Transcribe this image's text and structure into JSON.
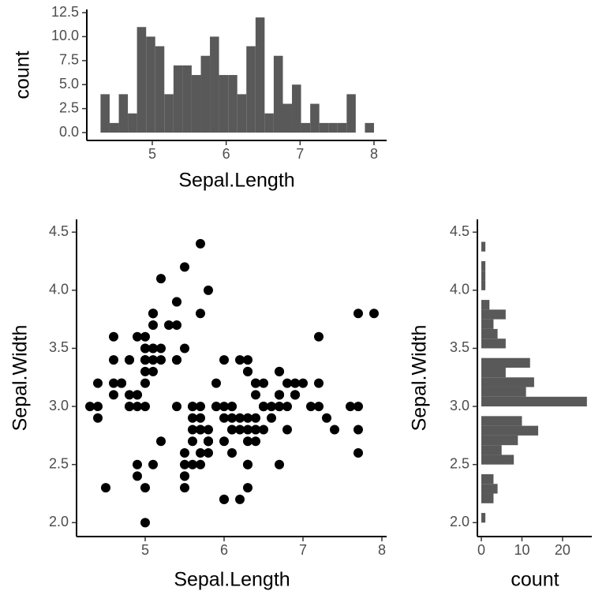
{
  "chart_data": [
    {
      "type": "histogram",
      "orientation": "vertical",
      "xlabel": "Sepal.Length",
      "ylabel": "count",
      "color": "#595959",
      "grid": false,
      "bins": [
        4.3,
        4.423,
        4.547,
        4.67,
        4.793,
        4.917,
        5.04,
        5.163,
        5.287,
        5.41,
        5.533,
        5.657,
        5.78,
        5.903,
        6.027,
        6.15,
        6.273,
        6.397,
        6.52,
        6.643,
        6.767,
        6.89,
        7.013,
        7.137,
        7.26,
        7.383,
        7.507,
        7.63,
        7.753,
        7.877,
        8.0
      ],
      "values": [
        4,
        1,
        4,
        2,
        11,
        10,
        9,
        4,
        7,
        7,
        6,
        8,
        10,
        6,
        6,
        4,
        9,
        12,
        2,
        8,
        3,
        5,
        1,
        3,
        1,
        1,
        1,
        4,
        0,
        1
      ],
      "xlim": [
        4.114,
        8.171
      ],
      "xticks": [
        5,
        6,
        7,
        8
      ],
      "ylim": [
        -0.82,
        12.83
      ],
      "yticks": [
        {
          "value": 0,
          "label": "0.0"
        },
        2.5,
        {
          "value": 5,
          "label": "5.0"
        },
        7.5,
        {
          "value": 10,
          "label": "10.0"
        },
        12.5
      ]
    },
    {
      "type": "scatter",
      "xlabel": "Sepal.Length",
      "ylabel": "Sepal.Width",
      "color": "#000000",
      "grid": false,
      "x": [
        5.1,
        4.9,
        4.7,
        4.6,
        5.0,
        5.4,
        4.6,
        5.0,
        4.4,
        4.9,
        5.4,
        4.8,
        4.8,
        4.3,
        5.8,
        5.7,
        5.4,
        5.1,
        5.7,
        5.1,
        5.4,
        5.1,
        4.6,
        5.1,
        4.8,
        5.0,
        5.0,
        5.2,
        5.2,
        4.7,
        4.8,
        5.4,
        5.2,
        5.5,
        4.9,
        5.0,
        5.5,
        4.9,
        4.4,
        5.1,
        5.0,
        4.5,
        4.4,
        5.0,
        5.1,
        4.8,
        5.1,
        4.6,
        5.3,
        5.0,
        7.0,
        6.4,
        6.9,
        5.5,
        6.5,
        5.7,
        6.3,
        4.9,
        6.6,
        5.2,
        5.0,
        5.9,
        6.0,
        6.1,
        5.6,
        6.7,
        5.6,
        5.8,
        6.2,
        5.6,
        5.9,
        6.1,
        6.3,
        6.1,
        6.4,
        6.6,
        6.8,
        6.7,
        6.0,
        5.7,
        5.5,
        5.5,
        5.8,
        6.0,
        5.4,
        6.0,
        6.7,
        6.3,
        5.6,
        5.5,
        5.5,
        6.1,
        5.8,
        5.0,
        5.6,
        5.7,
        5.7,
        6.2,
        5.1,
        5.7,
        6.3,
        5.8,
        7.1,
        6.3,
        6.5,
        7.6,
        4.9,
        7.3,
        6.7,
        7.2,
        6.5,
        6.4,
        6.8,
        5.7,
        5.8,
        6.4,
        6.5,
        7.7,
        7.7,
        6.0,
        6.9,
        5.6,
        7.7,
        6.3,
        6.7,
        7.2,
        6.2,
        6.1,
        6.4,
        7.2,
        7.4,
        7.9,
        6.4,
        6.3,
        6.1,
        7.7,
        6.3,
        6.4,
        6.0,
        6.9,
        6.7,
        6.9,
        5.8,
        6.8,
        6.7,
        6.7,
        6.3,
        6.5,
        6.2,
        5.9
      ],
      "values": [
        3.5,
        3.0,
        3.2,
        3.1,
        3.6,
        3.9,
        3.4,
        3.4,
        2.9,
        3.1,
        3.7,
        3.4,
        3.0,
        3.0,
        4.0,
        4.4,
        3.9,
        3.5,
        3.8,
        3.8,
        3.4,
        3.7,
        3.6,
        3.3,
        3.4,
        3.0,
        3.4,
        3.5,
        3.4,
        3.2,
        3.1,
        3.4,
        4.1,
        4.2,
        3.1,
        3.2,
        3.5,
        3.6,
        3.0,
        3.4,
        3.5,
        2.3,
        3.2,
        3.5,
        3.8,
        3.0,
        3.8,
        3.2,
        3.7,
        3.3,
        3.2,
        3.2,
        3.1,
        2.3,
        2.8,
        2.8,
        3.3,
        2.4,
        2.9,
        2.7,
        2.0,
        3.0,
        2.2,
        2.9,
        2.9,
        3.1,
        3.0,
        2.7,
        2.2,
        2.5,
        3.2,
        2.8,
        2.5,
        2.8,
        2.9,
        3.0,
        2.8,
        3.0,
        2.9,
        2.6,
        2.4,
        2.4,
        2.7,
        2.7,
        3.0,
        3.4,
        3.1,
        2.3,
        3.0,
        2.5,
        2.6,
        3.0,
        2.6,
        2.3,
        2.7,
        3.0,
        2.9,
        2.9,
        2.5,
        2.8,
        3.3,
        2.7,
        3.0,
        2.9,
        3.0,
        3.0,
        2.5,
        2.9,
        2.5,
        3.6,
        3.2,
        2.7,
        3.0,
        2.5,
        2.8,
        3.2,
        3.0,
        3.8,
        2.6,
        2.2,
        3.2,
        2.8,
        2.8,
        2.7,
        3.3,
        3.2,
        2.8,
        3.0,
        2.8,
        3.0,
        2.8,
        3.8,
        2.8,
        2.8,
        2.6,
        3.0,
        3.4,
        3.1,
        3.0,
        3.1,
        3.1,
        3.1,
        2.7,
        3.2,
        3.3,
        3.0,
        2.5,
        3.0,
        3.4,
        3.0
      ],
      "xlim": [
        4.13,
        8.06
      ],
      "xticks": [
        5,
        6,
        7,
        8
      ],
      "ylim": [
        1.88,
        4.61
      ],
      "yticks": [
        {
          "value": 2,
          "label": "2.0"
        },
        2.5,
        {
          "value": 3,
          "label": "3.0"
        },
        3.5,
        {
          "value": 4,
          "label": "4.0"
        },
        4.5
      ]
    },
    {
      "type": "histogram",
      "orientation": "horizontal",
      "xlabel": "count",
      "ylabel": "Sepal.Width",
      "color": "#595959",
      "grid": false,
      "bins": [
        2.0,
        2.0833,
        2.1667,
        2.25,
        2.3333,
        2.4167,
        2.5,
        2.5833,
        2.6667,
        2.75,
        2.8333,
        2.9167,
        3.0,
        3.0833,
        3.1667,
        3.25,
        3.3333,
        3.4167,
        3.5,
        3.5833,
        3.6667,
        3.75,
        3.8333,
        3.9167,
        4.0,
        4.0833,
        4.1667,
        4.25,
        4.3333,
        4.4167,
        4.5
      ],
      "values": [
        1,
        0,
        3,
        4,
        3,
        0,
        8,
        5,
        9,
        14,
        10,
        0,
        26,
        11,
        13,
        6,
        12,
        0,
        6,
        4,
        3,
        6,
        2,
        0,
        1,
        1,
        1,
        0,
        1,
        0
      ],
      "xlim": [
        -0.97,
        27.2
      ],
      "xticks": [
        0,
        10,
        20
      ],
      "ylim": [
        1.88,
        4.61
      ],
      "yticks": [
        {
          "value": 2,
          "label": "2.0"
        },
        2.5,
        {
          "value": 3,
          "label": "3.0"
        },
        3.5,
        {
          "value": 4,
          "label": "4.0"
        },
        4.5
      ]
    }
  ]
}
